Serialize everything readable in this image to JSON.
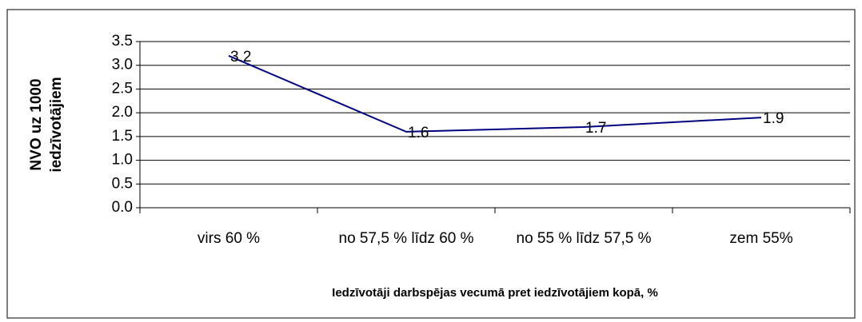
{
  "chart_data": {
    "type": "line",
    "categories": [
      "virs 60 %",
      "no 57,5 % līdz 60 %",
      "no 55 % līdz 57,5 %",
      "zem 55%"
    ],
    "series": [
      {
        "name": "NVO uz 1000 iedzīvotājiem",
        "color": "#000080",
        "values": [
          3.2,
          1.6,
          1.7,
          1.9
        ]
      }
    ],
    "ylabel": "NVO uz 1000 iedzīvotājiem",
    "xlabel": "Iedzīvotāji darbspējas vecumā pret iedzīvotājiem kopā, %",
    "ylim": [
      0,
      3.5
    ],
    "yticks": [
      {
        "value": 0,
        "label": "0.0"
      },
      0.5,
      {
        "value": 1,
        "label": "1.0"
      },
      1.5,
      {
        "value": 2,
        "label": "2.0"
      },
      2.5,
      {
        "value": 3,
        "label": "3.0"
      },
      3.5
    ],
    "grid": true
  }
}
